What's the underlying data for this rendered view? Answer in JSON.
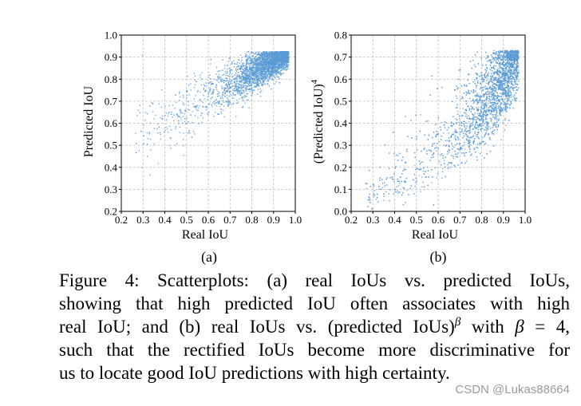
{
  "chart_data": [
    {
      "type": "scatter",
      "panel": "(a)",
      "xlabel": "Real IoU",
      "ylabel": "Predicted IoU",
      "xlim": [
        0.2,
        1.0
      ],
      "ylim": [
        0.2,
        1.0
      ],
      "xticks": [
        "0.2",
        "0.3",
        "0.4",
        "0.5",
        "0.6",
        "0.7",
        "0.8",
        "0.9",
        "1.0"
      ],
      "yticks": [
        "0.2",
        "0.3",
        "0.4",
        "0.5",
        "0.6",
        "0.7",
        "0.8",
        "0.9",
        "1.0"
      ],
      "grid": true,
      "color": "#5b9bd5",
      "points": [
        [
          0.3,
          0.3
        ],
        [
          0.32,
          0.45
        ],
        [
          0.35,
          0.62
        ],
        [
          0.38,
          0.55
        ],
        [
          0.4,
          0.3
        ],
        [
          0.42,
          0.68
        ],
        [
          0.45,
          0.5
        ],
        [
          0.47,
          0.72
        ],
        [
          0.5,
          0.6
        ],
        [
          0.52,
          0.75
        ],
        [
          0.55,
          0.68
        ],
        [
          0.57,
          0.8
        ],
        [
          0.6,
          0.72
        ],
        [
          0.62,
          0.78
        ],
        [
          0.65,
          0.82
        ],
        [
          0.67,
          0.76
        ],
        [
          0.7,
          0.84
        ],
        [
          0.72,
          0.8
        ],
        [
          0.75,
          0.86
        ],
        [
          0.78,
          0.83
        ],
        [
          0.8,
          0.88
        ],
        [
          0.82,
          0.85
        ],
        [
          0.85,
          0.89
        ],
        [
          0.87,
          0.87
        ],
        [
          0.9,
          0.9
        ],
        [
          0.92,
          0.89
        ],
        [
          0.94,
          0.91
        ],
        [
          0.96,
          0.9
        ]
      ]
    },
    {
      "type": "scatter",
      "panel": "(b)",
      "xlabel": "Real IoU",
      "ylabel": "(Predicted IoU)",
      "ylabel_exponent": "4",
      "xlim": [
        0.2,
        1.0
      ],
      "ylim": [
        0.0,
        0.8
      ],
      "xticks": [
        "0.2",
        "0.3",
        "0.4",
        "0.5",
        "0.6",
        "0.7",
        "0.8",
        "0.9",
        "1.0"
      ],
      "yticks": [
        "0.0",
        "0.1",
        "0.2",
        "0.3",
        "0.4",
        "0.5",
        "0.6",
        "0.7",
        "0.8"
      ],
      "grid": true,
      "color": "#5b9bd5",
      "points": [
        [
          0.3,
          0.01
        ],
        [
          0.35,
          0.05
        ],
        [
          0.4,
          0.1
        ],
        [
          0.45,
          0.04
        ],
        [
          0.5,
          0.15
        ],
        [
          0.52,
          0.09
        ],
        [
          0.55,
          0.2
        ],
        [
          0.57,
          0.13
        ],
        [
          0.6,
          0.26
        ],
        [
          0.62,
          0.18
        ],
        [
          0.65,
          0.3
        ],
        [
          0.67,
          0.24
        ],
        [
          0.7,
          0.36
        ],
        [
          0.72,
          0.3
        ],
        [
          0.75,
          0.42
        ],
        [
          0.78,
          0.38
        ],
        [
          0.8,
          0.5
        ],
        [
          0.82,
          0.45
        ],
        [
          0.85,
          0.56
        ],
        [
          0.87,
          0.52
        ],
        [
          0.9,
          0.62
        ],
        [
          0.92,
          0.6
        ],
        [
          0.94,
          0.67
        ],
        [
          0.96,
          0.65
        ]
      ]
    }
  ],
  "caption": {
    "line1": "Figure 4: Scatterplots: (a) real IoUs vs. predicted IoUs,",
    "line2": "showing that high predicted IoU often associates with high",
    "line3a": "real IoU; and (b) real IoUs vs. (predicted IoUs)",
    "beta_sup": "β",
    "line3b": " with ",
    "beta_eq": "β",
    "line3c": " = 4,",
    "line4": "such that the rectified IoUs become more discriminative for",
    "line5": "us to locate good IoU predictions with high certainty."
  },
  "watermark": "CSDN @Lukas88664"
}
